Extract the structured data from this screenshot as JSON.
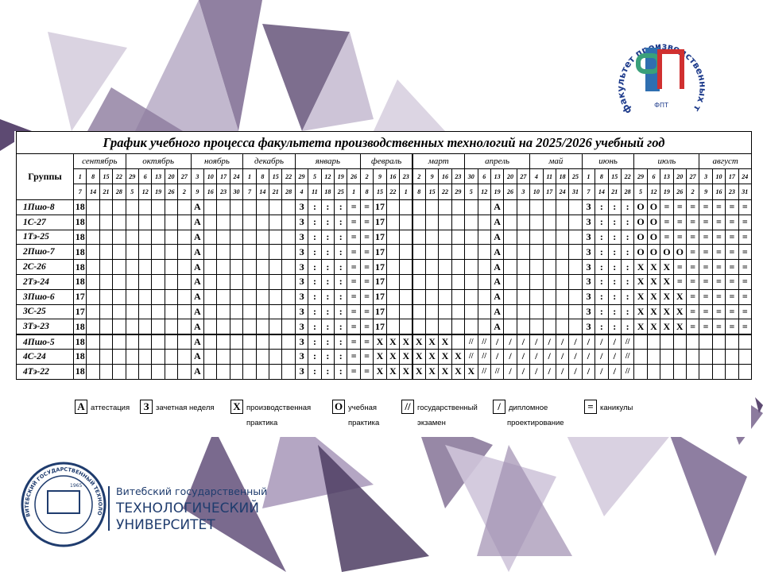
{
  "table": {
    "title": "График учебного процесса факультета производственных технологий на 2025/2026 учебный год",
    "group_header": "Группы",
    "months": [
      {
        "name": "сентябрь",
        "starts": [
          "1",
          "8",
          "15",
          "22"
        ],
        "ends": [
          "7",
          "14",
          "21",
          "28"
        ]
      },
      {
        "name": "октябрь",
        "starts": [
          "29",
          "6",
          "13",
          "20",
          "27"
        ],
        "ends": [
          "5",
          "12",
          "19",
          "26",
          "2"
        ]
      },
      {
        "name": "ноябрь",
        "starts": [
          "3",
          "10",
          "17",
          "24"
        ],
        "ends": [
          "9",
          "16",
          "23",
          "30"
        ]
      },
      {
        "name": "декабрь",
        "starts": [
          "1",
          "8",
          "15",
          "22"
        ],
        "ends": [
          "7",
          "14",
          "21",
          "28"
        ]
      },
      {
        "name": "январь",
        "starts": [
          "29",
          "5",
          "12",
          "19",
          "26"
        ],
        "ends": [
          "4",
          "11",
          "18",
          "25",
          "1"
        ]
      },
      {
        "name": "февраль",
        "starts": [
          "2",
          "9",
          "16",
          "23"
        ],
        "ends": [
          "8",
          "15",
          "22",
          "1"
        ]
      },
      {
        "name": "март",
        "starts": [
          "2",
          "9",
          "16",
          "23"
        ],
        "ends": [
          "8",
          "15",
          "22",
          "29"
        ]
      },
      {
        "name": "апрель",
        "starts": [
          "30",
          "6",
          "13",
          "20",
          "27"
        ],
        "ends": [
          "5",
          "12",
          "19",
          "26",
          "3"
        ]
      },
      {
        "name": "май",
        "starts": [
          "4",
          "11",
          "18",
          "25"
        ],
        "ends": [
          "10",
          "17",
          "24",
          "31"
        ]
      },
      {
        "name": "июнь",
        "starts": [
          "1",
          "8",
          "15",
          "22"
        ],
        "ends": [
          "7",
          "14",
          "21",
          "28"
        ]
      },
      {
        "name": "июль",
        "starts": [
          "29",
          "6",
          "13",
          "20",
          "27"
        ],
        "ends": [
          "5",
          "12",
          "19",
          "26",
          "2"
        ]
      },
      {
        "name": "август",
        "starts": [
          "3",
          "10",
          "17",
          "24"
        ],
        "ends": [
          "9",
          "16",
          "23",
          "31"
        ]
      }
    ],
    "rows": [
      {
        "group": "1Пшо-8",
        "cells": [
          "18",
          null,
          null,
          null,
          null,
          null,
          null,
          null,
          null,
          "А",
          null,
          null,
          null,
          null,
          null,
          null,
          null,
          "З",
          ":",
          ":",
          ":",
          "=",
          "=",
          "17",
          null,
          null,
          null,
          null,
          null,
          null,
          null,
          null,
          "А",
          null,
          null,
          null,
          null,
          null,
          null,
          "З",
          ":",
          ":",
          ":",
          "О",
          "О",
          "=",
          "=",
          "=",
          "=",
          "=",
          "=",
          "="
        ]
      },
      {
        "group": "1С-27",
        "cells": [
          "18",
          null,
          null,
          null,
          null,
          null,
          null,
          null,
          null,
          "А",
          null,
          null,
          null,
          null,
          null,
          null,
          null,
          "З",
          ":",
          ":",
          ":",
          "=",
          "=",
          "17",
          null,
          null,
          null,
          null,
          null,
          null,
          null,
          null,
          "А",
          null,
          null,
          null,
          null,
          null,
          null,
          "З",
          ":",
          ":",
          ":",
          "О",
          "О",
          "=",
          "=",
          "=",
          "=",
          "=",
          "=",
          "="
        ]
      },
      {
        "group": "1Тэ-25",
        "cells": [
          "18",
          null,
          null,
          null,
          null,
          null,
          null,
          null,
          null,
          "А",
          null,
          null,
          null,
          null,
          null,
          null,
          null,
          "З",
          ":",
          ":",
          ":",
          "=",
          "=",
          "17",
          null,
          null,
          null,
          null,
          null,
          null,
          null,
          null,
          "А",
          null,
          null,
          null,
          null,
          null,
          null,
          "З",
          ":",
          ":",
          ":",
          "О",
          "О",
          "=",
          "=",
          "=",
          "=",
          "=",
          "=",
          "="
        ]
      },
      {
        "group": "2Пшо-7",
        "cells": [
          "18",
          null,
          null,
          null,
          null,
          null,
          null,
          null,
          null,
          "А",
          null,
          null,
          null,
          null,
          null,
          null,
          null,
          "З",
          ":",
          ":",
          ":",
          "=",
          "=",
          "17",
          null,
          null,
          null,
          null,
          null,
          null,
          null,
          null,
          "А",
          null,
          null,
          null,
          null,
          null,
          null,
          "З",
          ":",
          ":",
          ":",
          "О",
          "О",
          "О",
          "О",
          "=",
          "=",
          "=",
          "=",
          "="
        ]
      },
      {
        "group": "2С-26",
        "cells": [
          "18",
          null,
          null,
          null,
          null,
          null,
          null,
          null,
          null,
          "А",
          null,
          null,
          null,
          null,
          null,
          null,
          null,
          "З",
          ":",
          ":",
          ":",
          "=",
          "=",
          "17",
          null,
          null,
          null,
          null,
          null,
          null,
          null,
          null,
          "А",
          null,
          null,
          null,
          null,
          null,
          null,
          "З",
          ":",
          ":",
          ":",
          "Х",
          "Х",
          "Х",
          "=",
          "=",
          "=",
          "=",
          "=",
          "="
        ]
      },
      {
        "group": "2Тэ-24",
        "cells": [
          "18",
          null,
          null,
          null,
          null,
          null,
          null,
          null,
          null,
          "А",
          null,
          null,
          null,
          null,
          null,
          null,
          null,
          "З",
          ":",
          ":",
          ":",
          "=",
          "=",
          "17",
          null,
          null,
          null,
          null,
          null,
          null,
          null,
          null,
          "А",
          null,
          null,
          null,
          null,
          null,
          null,
          "З",
          ":",
          ":",
          ":",
          "Х",
          "Х",
          "Х",
          "=",
          "=",
          "=",
          "=",
          "=",
          "="
        ]
      },
      {
        "group": "3Пшо-6",
        "cells": [
          "17",
          null,
          null,
          null,
          null,
          null,
          null,
          null,
          null,
          "А",
          null,
          null,
          null,
          null,
          null,
          null,
          null,
          "З",
          ":",
          ":",
          ":",
          "=",
          "=",
          "17",
          null,
          null,
          null,
          null,
          null,
          null,
          null,
          null,
          "А",
          null,
          null,
          null,
          null,
          null,
          null,
          "З",
          ":",
          ":",
          ":",
          "Х",
          "Х",
          "Х",
          "Х",
          "=",
          "=",
          "=",
          "=",
          "="
        ]
      },
      {
        "group": "3С-25",
        "cells": [
          "17",
          null,
          null,
          null,
          null,
          null,
          null,
          null,
          null,
          "А",
          null,
          null,
          null,
          null,
          null,
          null,
          null,
          "З",
          ":",
          ":",
          ":",
          "=",
          "=",
          "17",
          null,
          null,
          null,
          null,
          null,
          null,
          null,
          null,
          "А",
          null,
          null,
          null,
          null,
          null,
          null,
          "З",
          ":",
          ":",
          ":",
          "Х",
          "Х",
          "Х",
          "Х",
          "=",
          "=",
          "=",
          "=",
          "="
        ]
      },
      {
        "group": "3Тэ-23",
        "cells": [
          "18",
          null,
          null,
          null,
          null,
          null,
          null,
          null,
          null,
          "А",
          null,
          null,
          null,
          null,
          null,
          null,
          null,
          "З",
          ":",
          ":",
          ":",
          "=",
          "=",
          "17",
          null,
          null,
          null,
          null,
          null,
          null,
          null,
          null,
          "А",
          null,
          null,
          null,
          null,
          null,
          null,
          "З",
          ":",
          ":",
          ":",
          "Х",
          "Х",
          "Х",
          "Х",
          "=",
          "=",
          "=",
          "=",
          "="
        ]
      },
      {
        "group": "4Пшо-5",
        "cells": [
          "18",
          null,
          null,
          null,
          null,
          null,
          null,
          null,
          null,
          "А",
          null,
          null,
          null,
          null,
          null,
          null,
          null,
          "З",
          ":",
          ":",
          ":",
          "=",
          "=",
          "Х",
          "Х",
          "Х",
          "Х",
          "Х",
          "Х",
          null,
          "//",
          "//",
          "/",
          "/",
          "/",
          "/",
          "/",
          "/",
          "/",
          "/",
          "/",
          "/",
          "//",
          null,
          null,
          null,
          null,
          null,
          null,
          null,
          null,
          null
        ]
      },
      {
        "group": "4С-24",
        "cells": [
          "18",
          null,
          null,
          null,
          null,
          null,
          null,
          null,
          null,
          "А",
          null,
          null,
          null,
          null,
          null,
          null,
          null,
          "З",
          ":",
          ":",
          ":",
          "=",
          "=",
          "Х",
          "Х",
          "Х",
          "Х",
          "Х",
          "Х",
          "Х",
          "//",
          "//",
          "/",
          "/",
          "/",
          "/",
          "/",
          "/",
          "/",
          "/",
          "/",
          "/",
          "//",
          null,
          null,
          null,
          null,
          null,
          null,
          null,
          null,
          null
        ]
      },
      {
        "group": "4Тэ-22",
        "cells": [
          "18",
          null,
          null,
          null,
          null,
          null,
          null,
          null,
          null,
          "А",
          null,
          null,
          null,
          null,
          null,
          null,
          null,
          "З",
          ":",
          ":",
          ":",
          "=",
          "=",
          "Х",
          "Х",
          "Х",
          "Х",
          "Х",
          "Х",
          "Х",
          "Х",
          "//",
          "//",
          "/",
          "/",
          "/",
          "/",
          "/",
          "/",
          "/",
          "/",
          "/",
          "//",
          null,
          null,
          null,
          null,
          null,
          null,
          null,
          null,
          null
        ]
      }
    ],
    "legend": [
      {
        "symbol": "А",
        "lines": [
          "аттестация"
        ]
      },
      {
        "symbol": "З",
        "lines": [
          "зачетная неделя"
        ]
      },
      {
        "symbol": "Х",
        "lines": [
          "производственная",
          "практика"
        ]
      },
      {
        "symbol": "О",
        "lines": [
          "учебная",
          "практика"
        ]
      },
      {
        "symbol": "//",
        "lines": [
          "государственный",
          "экзамен"
        ]
      },
      {
        "symbol": "/",
        "lines": [
          "дипломное",
          "проектирование"
        ]
      },
      {
        "symbol": "=",
        "lines": [
          "каникулы"
        ]
      }
    ]
  },
  "logos": {
    "faculty_ring": "факультет производственных технологий",
    "faculty_letters": "ФПТ",
    "seal_text": "ВИТЕБСКИЙ ГОСУДАРСТВЕННЫЙ ТЕХНОЛОГИЧЕСКИЙ УНИВЕРСИТЕТ",
    "seal_year": "1965",
    "university": [
      "Витебский государственный",
      "ТЕХНОЛОГИЧЕСКИЙ",
      "УНИВЕРСИТЕТ"
    ]
  }
}
